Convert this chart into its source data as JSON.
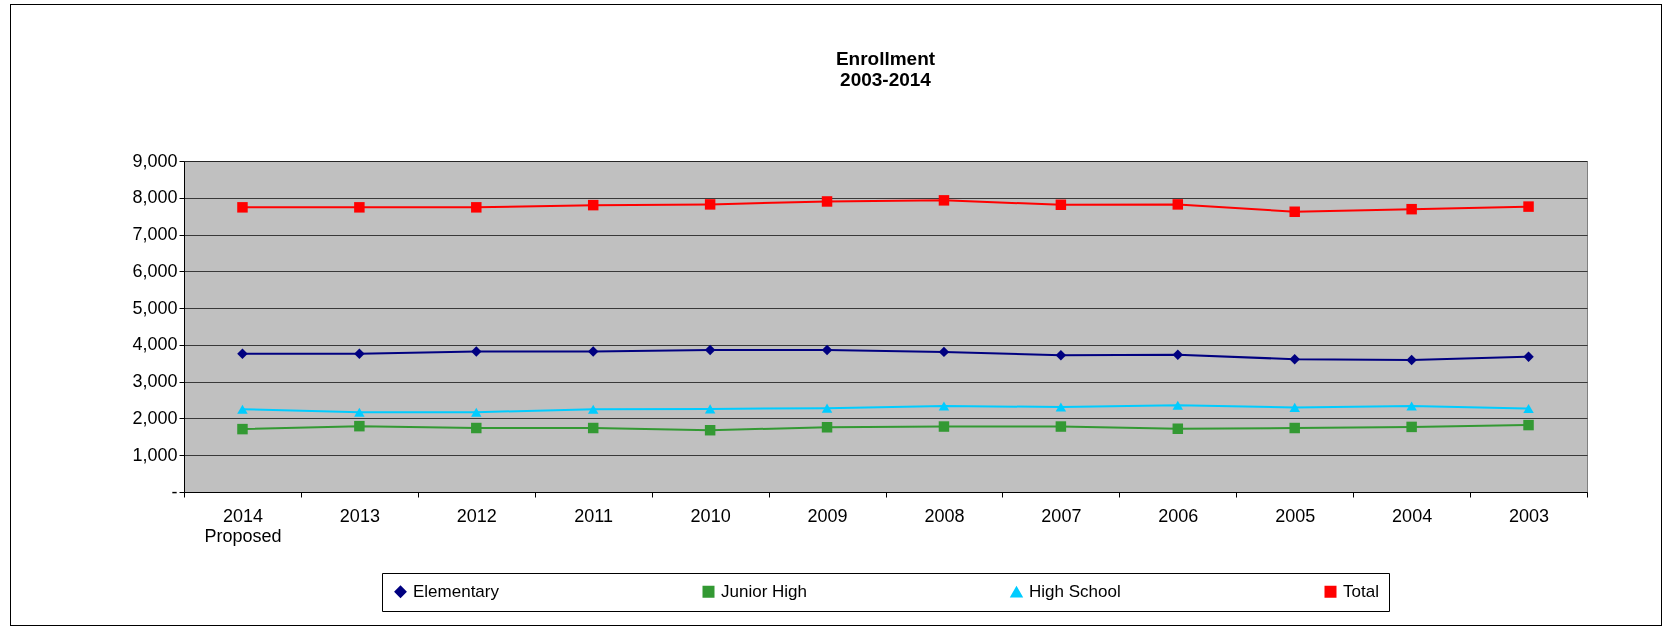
{
  "chart_data": {
    "type": "line",
    "title": "Enrollment",
    "subtitle": "2003-2014",
    "categories": [
      "2014\nProposed",
      "2013",
      "2012",
      "2011",
      "2010",
      "2009",
      "2008",
      "2007",
      "2006",
      "2005",
      "2004",
      "2003"
    ],
    "series": [
      {
        "name": "Elementary",
        "color": "#000080",
        "marker": "diamond",
        "values": [
          3760,
          3760,
          3820,
          3820,
          3860,
          3860,
          3810,
          3720,
          3730,
          3610,
          3590,
          3680
        ]
      },
      {
        "name": "Junior High",
        "color": "#339933",
        "marker": "square",
        "values": [
          1710,
          1790,
          1740,
          1740,
          1680,
          1760,
          1780,
          1780,
          1720,
          1740,
          1770,
          1820
        ]
      },
      {
        "name": "High School",
        "color": "#00ccff",
        "marker": "triangle",
        "values": [
          2250,
          2170,
          2170,
          2250,
          2260,
          2280,
          2340,
          2310,
          2360,
          2300,
          2340,
          2270
        ]
      },
      {
        "name": "Total",
        "color": "#ff0000",
        "marker": "square",
        "values": [
          7740,
          7740,
          7740,
          7800,
          7820,
          7900,
          7930,
          7810,
          7820,
          7620,
          7690,
          7760
        ]
      }
    ],
    "ylim": [
      0,
      9000
    ],
    "yticks": [
      {
        "value": 0,
        "label": "-"
      },
      {
        "value": 1000,
        "label": "1,000"
      },
      {
        "value": 2000,
        "label": "2,000"
      },
      {
        "value": 3000,
        "label": "3,000"
      },
      {
        "value": 4000,
        "label": "4,000"
      },
      {
        "value": 5000,
        "label": "5,000"
      },
      {
        "value": 6000,
        "label": "6,000"
      },
      {
        "value": 7000,
        "label": "7,000"
      },
      {
        "value": 8000,
        "label": "8,000"
      },
      {
        "value": 9000,
        "label": "9,000"
      }
    ],
    "grid": "y",
    "legend": "bottom",
    "line_style": "solid"
  }
}
